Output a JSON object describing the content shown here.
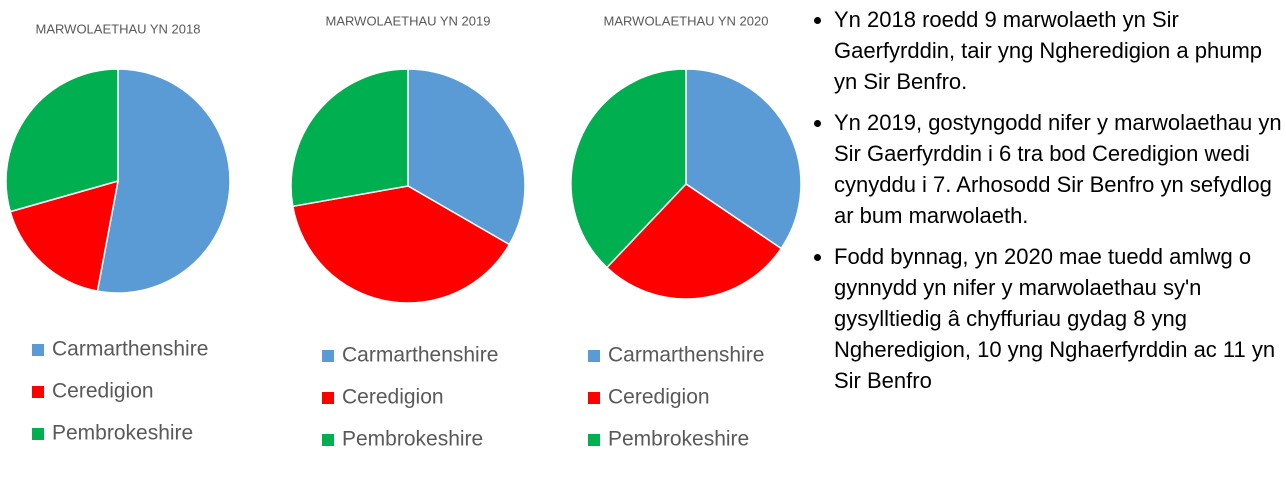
{
  "chart_data": [
    {
      "type": "pie",
      "title": "MARWOLAETHAU YN 2018",
      "categories": [
        "Carmarthenshire",
        "Ceredigion",
        "Pembrokeshire"
      ],
      "values": [
        9,
        3,
        5
      ],
      "colors": [
        "#5b9bd5",
        "#ff0000",
        "#00b050"
      ]
    },
    {
      "type": "pie",
      "title": "MARWOLAETHAU YN 2019",
      "categories": [
        "Carmarthenshire",
        "Ceredigion",
        "Pembrokeshire"
      ],
      "values": [
        6,
        7,
        5
      ],
      "colors": [
        "#5b9bd5",
        "#ff0000",
        "#00b050"
      ]
    },
    {
      "type": "pie",
      "title": "MARWOLAETHAU YN 2020",
      "categories": [
        "Carmarthenshire",
        "Ceredigion",
        "Pembrokeshire"
      ],
      "values": [
        10,
        8,
        11
      ],
      "colors": [
        "#5b9bd5",
        "#ff0000",
        "#00b050"
      ]
    }
  ],
  "bullets": [
    "Yn 2018 roedd 9 marwolaeth yn Sir Gaerfyrddin, tair yng Ngheredigion a phump yn Sir Benfro.",
    "Yn 2019, gostyngodd nifer y marwolaethau yn Sir Gaerfyrddin i 6 tra bod Ceredigion wedi cynyddu i 7. Arhosodd Sir Benfro yn sefydlog ar bum marwolaeth.",
    "Fodd bynnag, yn 2020 mae tuedd amlwg o gynnydd yn nifer y marwolaethau sy'n gysylltiedig â chyffuriau gydag 8 yng Ngheredigion, 10 yng Nghaerfyrddin ac 11 yn Sir Benfro"
  ]
}
